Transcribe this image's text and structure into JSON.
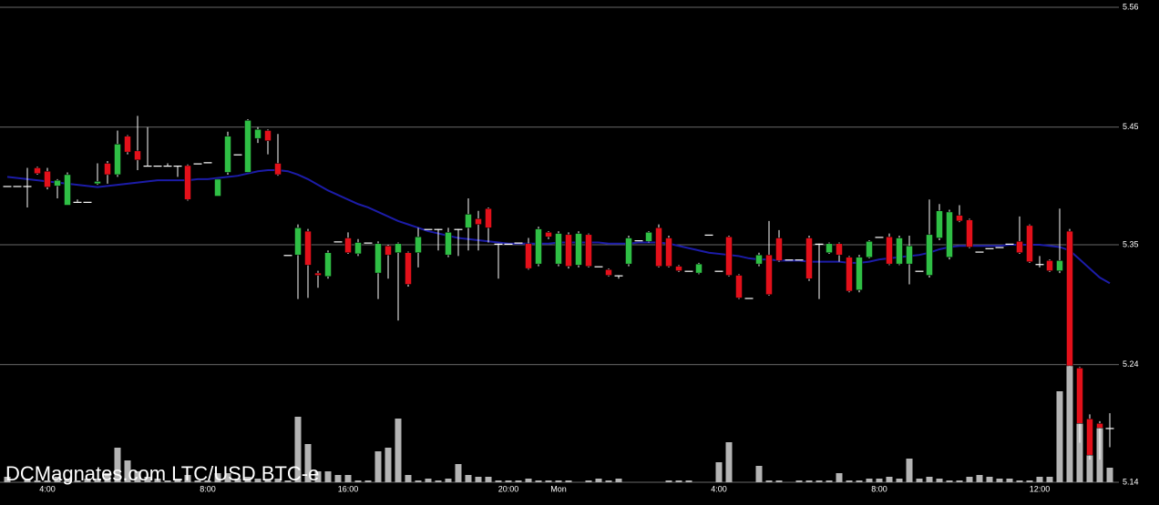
{
  "chart_data": {
    "type": "candlestick",
    "watermark": "DCMagnates.com LTC/USD BTC-e",
    "categories": [
      null,
      null,
      null,
      null,
      "4:00",
      null,
      null,
      null,
      null,
      null,
      null,
      null,
      null,
      null,
      null,
      null,
      null,
      null,
      null,
      null,
      "8:00",
      null,
      null,
      null,
      null,
      null,
      null,
      null,
      null,
      null,
      null,
      null,
      null,
      null,
      "16:00",
      null,
      null,
      null,
      null,
      null,
      null,
      null,
      null,
      null,
      null,
      null,
      null,
      null,
      null,
      null,
      "20:00",
      null,
      null,
      null,
      null,
      "Mon",
      null,
      null,
      null,
      null,
      null,
      null,
      null,
      null,
      null,
      null,
      null,
      null,
      null,
      null,
      null,
      "4:00",
      null,
      null,
      null,
      null,
      null,
      null,
      null,
      null,
      null,
      null,
      null,
      null,
      null,
      null,
      null,
      "8:00",
      null,
      null,
      null,
      null,
      null,
      null,
      null,
      null,
      null,
      null,
      null,
      null,
      null,
      null,
      null,
      "12:00",
      null,
      null,
      null,
      null,
      null,
      null,
      null
    ],
    "open": [
      5.402,
      5.402,
      5.402,
      5.418,
      5.415,
      5.402,
      5.385,
      5.388,
      5.388,
      5.404,
      5.422,
      5.412,
      5.446,
      5.433,
      5.42,
      5.42,
      5.42,
      5.42,
      5.42,
      5.422,
      5.423,
      5.393,
      5.414,
      5.43,
      5.414,
      5.444,
      5.451,
      5.422,
      5.341,
      5.341,
      5.362,
      5.325,
      5.322,
      5.353,
      5.356,
      5.342,
      5.352,
      5.325,
      5.349,
      5.343,
      5.343,
      5.343,
      5.364,
      5.364,
      5.341,
      5.364,
      5.365,
      5.373,
      5.382,
      5.351,
      5.351,
      5.352,
      5.351,
      5.333,
      5.361,
      5.333,
      5.359,
      5.332,
      5.359,
      5.331,
      5.328,
      5.323,
      5.333,
      5.354,
      5.353,
      5.365,
      5.356,
      5.331,
      5.327,
      5.325,
      5.359,
      5.327,
      5.357,
      5.323,
      5.303,
      5.333,
      5.341,
      5.356,
      5.337,
      5.337,
      5.356,
      5.351,
      5.343,
      5.351,
      5.339,
      5.31,
      5.339,
      5.357,
      5.357,
      5.333,
      5.333,
      5.327,
      5.323,
      5.356,
      5.339,
      5.376,
      5.372,
      5.344,
      5.347,
      5.348,
      5.351,
      5.353,
      5.367,
      5.333,
      5.336,
      5.327,
      5.362,
      5.241,
      5.196,
      5.192,
      5.188
    ],
    "high": [
      5.402,
      5.402,
      5.418,
      5.419,
      5.418,
      5.408,
      5.414,
      5.39,
      5.388,
      5.422,
      5.424,
      5.451,
      5.447,
      5.464,
      5.454,
      5.42,
      5.422,
      5.42,
      5.421,
      5.422,
      5.423,
      5.408,
      5.45,
      5.43,
      5.461,
      5.454,
      5.452,
      5.448,
      5.341,
      5.368,
      5.364,
      5.327,
      5.345,
      5.353,
      5.361,
      5.355,
      5.352,
      5.353,
      5.35,
      5.352,
      5.344,
      5.365,
      5.364,
      5.364,
      5.365,
      5.364,
      5.391,
      5.38,
      5.383,
      5.351,
      5.351,
      5.352,
      5.356,
      5.366,
      5.362,
      5.362,
      5.361,
      5.362,
      5.36,
      5.331,
      5.329,
      5.323,
      5.358,
      5.354,
      5.362,
      5.368,
      5.358,
      5.332,
      5.327,
      5.334,
      5.359,
      5.327,
      5.358,
      5.324,
      5.303,
      5.343,
      5.371,
      5.363,
      5.337,
      5.337,
      5.358,
      5.351,
      5.352,
      5.352,
      5.34,
      5.341,
      5.354,
      5.357,
      5.36,
      5.358,
      5.358,
      5.327,
      5.39,
      5.386,
      5.381,
      5.385,
      5.373,
      5.344,
      5.347,
      5.348,
      5.351,
      5.375,
      5.368,
      5.34,
      5.337,
      5.382,
      5.364,
      5.242,
      5.2,
      5.194,
      5.201
    ],
    "low": [
      5.402,
      5.402,
      5.383,
      5.412,
      5.399,
      5.391,
      5.385,
      5.388,
      5.388,
      5.403,
      5.404,
      5.41,
      5.43,
      5.416,
      5.42,
      5.42,
      5.42,
      5.41,
      5.389,
      5.422,
      5.423,
      5.393,
      5.412,
      5.43,
      5.414,
      5.44,
      5.43,
      5.411,
      5.341,
      5.302,
      5.303,
      5.312,
      5.32,
      5.353,
      5.342,
      5.34,
      5.352,
      5.302,
      5.32,
      5.283,
      5.313,
      5.33,
      5.364,
      5.345,
      5.339,
      5.34,
      5.345,
      5.345,
      5.352,
      5.32,
      5.351,
      5.352,
      5.328,
      5.331,
      5.355,
      5.331,
      5.329,
      5.33,
      5.33,
      5.331,
      5.322,
      5.32,
      5.331,
      5.354,
      5.352,
      5.33,
      5.33,
      5.326,
      5.327,
      5.324,
      5.359,
      5.327,
      5.322,
      5.302,
      5.303,
      5.331,
      5.305,
      5.335,
      5.337,
      5.337,
      5.318,
      5.302,
      5.342,
      5.335,
      5.308,
      5.308,
      5.338,
      5.357,
      5.332,
      5.332,
      5.315,
      5.327,
      5.321,
      5.354,
      5.337,
      5.37,
      5.347,
      5.344,
      5.347,
      5.348,
      5.351,
      5.342,
      5.334,
      5.33,
      5.326,
      5.325,
      5.242,
      5.175,
      5.16,
      5.16,
      5.171
    ],
    "close": [
      5.402,
      5.402,
      5.402,
      5.413,
      5.401,
      5.407,
      5.412,
      5.388,
      5.388,
      5.406,
      5.412,
      5.439,
      5.432,
      5.425,
      5.42,
      5.42,
      5.42,
      5.42,
      5.39,
      5.422,
      5.423,
      5.408,
      5.446,
      5.43,
      5.46,
      5.452,
      5.442,
      5.412,
      5.341,
      5.365,
      5.332,
      5.323,
      5.343,
      5.353,
      5.343,
      5.352,
      5.352,
      5.351,
      5.341,
      5.351,
      5.315,
      5.357,
      5.364,
      5.364,
      5.361,
      5.364,
      5.377,
      5.368,
      5.365,
      5.351,
      5.351,
      5.352,
      5.329,
      5.364,
      5.357,
      5.36,
      5.331,
      5.36,
      5.331,
      5.331,
      5.323,
      5.323,
      5.356,
      5.354,
      5.361,
      5.331,
      5.331,
      5.327,
      5.327,
      5.333,
      5.359,
      5.327,
      5.323,
      5.303,
      5.303,
      5.341,
      5.306,
      5.336,
      5.337,
      5.337,
      5.32,
      5.351,
      5.351,
      5.341,
      5.309,
      5.339,
      5.353,
      5.357,
      5.333,
      5.356,
      5.349,
      5.327,
      5.359,
      5.38,
      5.379,
      5.371,
      5.348,
      5.344,
      5.347,
      5.348,
      5.351,
      5.343,
      5.335,
      5.333,
      5.327,
      5.336,
      5.243,
      5.192,
      5.164,
      5.188,
      5.188
    ],
    "volume": [
      3,
      0,
      2,
      1,
      1,
      3,
      2,
      1,
      2,
      2,
      5,
      19,
      12,
      6,
      3,
      2,
      1,
      1,
      4,
      1,
      1,
      5,
      5,
      2,
      3,
      2,
      1,
      2,
      1,
      36,
      21,
      6,
      6,
      4,
      4,
      1,
      1,
      17,
      19,
      35,
      4,
      1,
      2,
      1,
      2,
      10,
      4,
      3,
      3,
      1,
      1,
      1,
      2,
      1,
      1,
      1,
      1,
      0,
      1,
      2,
      1,
      2,
      0,
      0,
      0,
      0,
      1,
      1,
      1,
      0,
      0,
      11,
      22,
      0,
      0,
      9,
      1,
      1,
      0,
      1,
      1,
      1,
      1,
      5,
      1,
      1,
      2,
      2,
      3,
      2,
      13,
      2,
      3,
      2,
      1,
      1,
      3,
      4,
      3,
      2,
      2,
      1,
      1,
      3,
      3,
      50,
      83,
      43,
      33,
      30,
      8
    ],
    "moving_average": [
      5.41,
      5.409,
      5.408,
      5.407,
      5.406,
      5.405,
      5.404,
      5.403,
      5.402,
      5.401,
      5.402,
      5.403,
      5.404,
      5.405,
      5.406,
      5.407,
      5.407,
      5.407,
      5.407,
      5.408,
      5.408,
      5.409,
      5.41,
      5.411,
      5.413,
      5.415,
      5.416,
      5.416,
      5.415,
      5.412,
      5.408,
      5.403,
      5.398,
      5.394,
      5.39,
      5.386,
      5.383,
      5.379,
      5.375,
      5.371,
      5.368,
      5.365,
      5.362,
      5.36,
      5.358,
      5.356,
      5.355,
      5.354,
      5.353,
      5.352,
      5.351,
      5.351,
      5.351,
      5.351,
      5.351,
      5.352,
      5.352,
      5.352,
      5.352,
      5.352,
      5.351,
      5.351,
      5.351,
      5.352,
      5.352,
      5.352,
      5.351,
      5.349,
      5.347,
      5.345,
      5.343,
      5.342,
      5.341,
      5.34,
      5.338,
      5.337,
      5.337,
      5.336,
      5.336,
      5.336,
      5.335,
      5.335,
      5.335,
      5.335,
      5.334,
      5.334,
      5.335,
      5.337,
      5.338,
      5.339,
      5.34,
      5.341,
      5.343,
      5.346,
      5.348,
      5.349,
      5.349,
      5.349,
      5.349,
      5.349,
      5.35,
      5.35,
      5.35,
      5.35,
      5.349,
      5.348,
      5.345,
      5.337,
      5.329,
      5.321,
      5.316
    ],
    "ylim": [
      5.14,
      5.56
    ],
    "yticks": [
      5.14,
      {
        "value": 5.244,
        "label": "5.24"
      },
      5.35,
      {
        "value": 5.454,
        "label": "5.45"
      },
      5.56
    ],
    "grid": true,
    "up_color": "#2fbf45",
    "down_color": "#e3101a",
    "wick_color": "#ffffff",
    "volume_color": "#b4b4b4",
    "ma_color": "#1c1ca8"
  }
}
